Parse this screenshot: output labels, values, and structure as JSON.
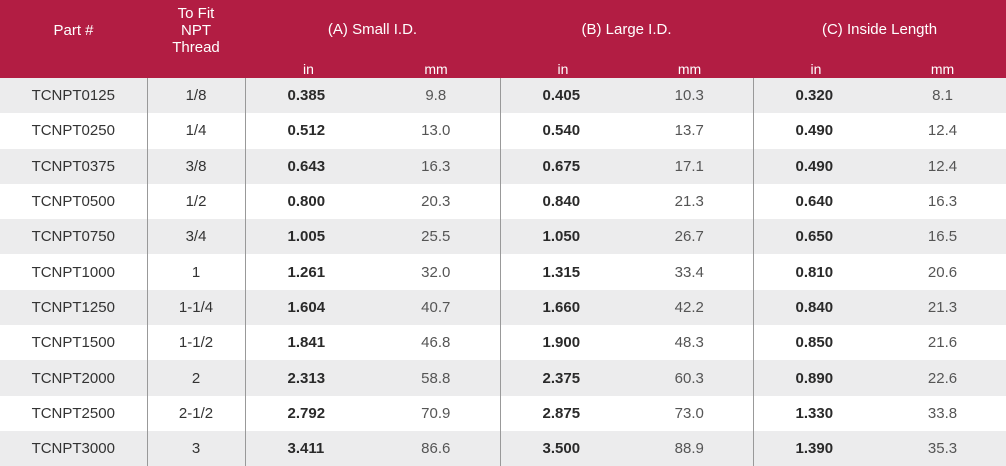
{
  "header": {
    "part": "Part #",
    "thread": "To Fit NPT Thread",
    "a": "(A) Small I.D.",
    "b": "(B) Large I.D.",
    "c": "(C) Inside Length",
    "in": "in",
    "mm": "mm"
  },
  "rows": [
    [
      "TCNPT0125",
      "1/8",
      "0.385",
      "9.8",
      "0.405",
      "10.3",
      "0.320",
      "8.1"
    ],
    [
      "TCNPT0250",
      "1/4",
      "0.512",
      "13.0",
      "0.540",
      "13.7",
      "0.490",
      "12.4"
    ],
    [
      "TCNPT0375",
      "3/8",
      "0.643",
      "16.3",
      "0.675",
      "17.1",
      "0.490",
      "12.4"
    ],
    [
      "TCNPT0500",
      "1/2",
      "0.800",
      "20.3",
      "0.840",
      "21.3",
      "0.640",
      "16.3"
    ],
    [
      "TCNPT0750",
      "3/4",
      "1.005",
      "25.5",
      "1.050",
      "26.7",
      "0.650",
      "16.5"
    ],
    [
      "TCNPT1000",
      "1",
      "1.261",
      "32.0",
      "1.315",
      "33.4",
      "0.810",
      "20.6"
    ],
    [
      "TCNPT1250",
      "1-1/4",
      "1.604",
      "40.7",
      "1.660",
      "42.2",
      "0.840",
      "21.3"
    ],
    [
      "TCNPT1500",
      "1-1/2",
      "1.841",
      "46.8",
      "1.900",
      "48.3",
      "0.850",
      "21.6"
    ],
    [
      "TCNPT2000",
      "2",
      "2.313",
      "58.8",
      "2.375",
      "60.3",
      "0.890",
      "22.6"
    ],
    [
      "TCNPT2500",
      "2-1/2",
      "2.792",
      "70.9",
      "2.875",
      "73.0",
      "1.330",
      "33.8"
    ],
    [
      "TCNPT3000",
      "3",
      "3.411",
      "86.6",
      "3.500",
      "88.9",
      "1.390",
      "35.3"
    ]
  ],
  "colors": {
    "header": "#b21d43",
    "stripe": "#ececed"
  }
}
